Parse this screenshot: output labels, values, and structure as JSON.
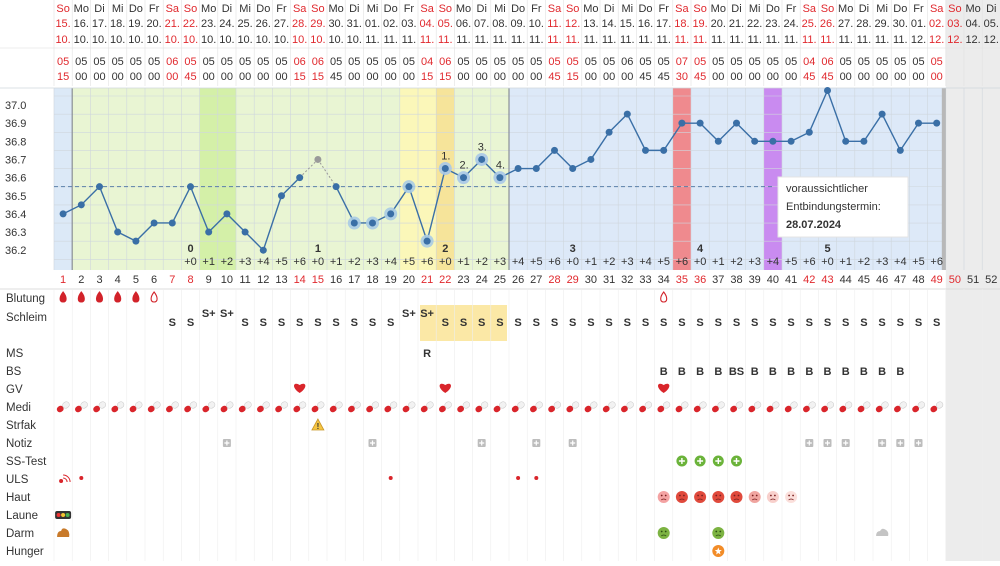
{
  "chart_data": {
    "type": "line",
    "title": "",
    "xlabel": "",
    "ylabel": "",
    "ylim": [
      36.1,
      37.1
    ],
    "y_ticks": [
      "37.0",
      "36.9",
      "36.8",
      "36.7",
      "36.6",
      "36.5",
      "36.4",
      "36.3",
      "36.2"
    ],
    "coverline": 36.55,
    "days": [
      {
        "dow": "So",
        "date": "15.",
        "month": "10.",
        "t1": "05",
        "t2": "15"
      },
      {
        "dow": "Mo",
        "date": "16.",
        "month": "10.",
        "t1": "05",
        "t2": "00"
      },
      {
        "dow": "Di",
        "date": "17.",
        "month": "10.",
        "t1": "05",
        "t2": "00"
      },
      {
        "dow": "Mi",
        "date": "18.",
        "month": "10.",
        "t1": "05",
        "t2": "00"
      },
      {
        "dow": "Do",
        "date": "19.",
        "month": "10.",
        "t1": "05",
        "t2": "00"
      },
      {
        "dow": "Fr",
        "date": "20.",
        "month": "10.",
        "t1": "05",
        "t2": "00"
      },
      {
        "dow": "Sa",
        "date": "21.",
        "month": "10.",
        "t1": "06",
        "t2": "00"
      },
      {
        "dow": "So",
        "date": "22.",
        "month": "10.",
        "t1": "05",
        "t2": "45"
      },
      {
        "dow": "Mo",
        "date": "23.",
        "month": "10.",
        "t1": "05",
        "t2": "00"
      },
      {
        "dow": "Di",
        "date": "24.",
        "month": "10.",
        "t1": "05",
        "t2": "00"
      },
      {
        "dow": "Mi",
        "date": "25.",
        "month": "10.",
        "t1": "05",
        "t2": "00"
      },
      {
        "dow": "Do",
        "date": "26.",
        "month": "10.",
        "t1": "05",
        "t2": "00"
      },
      {
        "dow": "Fr",
        "date": "27.",
        "month": "10.",
        "t1": "05",
        "t2": "00"
      },
      {
        "dow": "Sa",
        "date": "28.",
        "month": "10.",
        "t1": "06",
        "t2": "15"
      },
      {
        "dow": "So",
        "date": "29.",
        "month": "10.",
        "t1": "06",
        "t2": "15"
      },
      {
        "dow": "Mo",
        "date": "30.",
        "month": "10.",
        "t1": "05",
        "t2": "45"
      },
      {
        "dow": "Di",
        "date": "31.",
        "month": "10.",
        "t1": "05",
        "t2": "00"
      },
      {
        "dow": "Mi",
        "date": "01.",
        "month": "11.",
        "t1": "05",
        "t2": "00"
      },
      {
        "dow": "Do",
        "date": "02.",
        "month": "11.",
        "t1": "05",
        "t2": "00"
      },
      {
        "dow": "Fr",
        "date": "03.",
        "month": "11.",
        "t1": "05",
        "t2": "00"
      },
      {
        "dow": "Sa",
        "date": "04.",
        "month": "11.",
        "t1": "04",
        "t2": "15"
      },
      {
        "dow": "So",
        "date": "05.",
        "month": "11.",
        "t1": "06",
        "t2": "15"
      },
      {
        "dow": "Mo",
        "date": "06.",
        "month": "11.",
        "t1": "05",
        "t2": "00"
      },
      {
        "dow": "Di",
        "date": "07.",
        "month": "11.",
        "t1": "05",
        "t2": "00"
      },
      {
        "dow": "Mi",
        "date": "08.",
        "month": "11.",
        "t1": "05",
        "t2": "00"
      },
      {
        "dow": "Do",
        "date": "09.",
        "month": "11.",
        "t1": "05",
        "t2": "00"
      },
      {
        "dow": "Fr",
        "date": "10.",
        "month": "11.",
        "t1": "05",
        "t2": "00"
      },
      {
        "dow": "Sa",
        "date": "11.",
        "month": "11.",
        "t1": "05",
        "t2": "45"
      },
      {
        "dow": "So",
        "date": "12.",
        "month": "11.",
        "t1": "05",
        "t2": "15"
      },
      {
        "dow": "Mo",
        "date": "13.",
        "month": "11.",
        "t1": "05",
        "t2": "00"
      },
      {
        "dow": "Di",
        "date": "14.",
        "month": "11.",
        "t1": "05",
        "t2": "00"
      },
      {
        "dow": "Mi",
        "date": "15.",
        "month": "11.",
        "t1": "06",
        "t2": "00"
      },
      {
        "dow": "Do",
        "date": "16.",
        "month": "11.",
        "t1": "05",
        "t2": "45"
      },
      {
        "dow": "Fr",
        "date": "17.",
        "month": "11.",
        "t1": "05",
        "t2": "45"
      },
      {
        "dow": "Sa",
        "date": "18.",
        "month": "11.",
        "t1": "07",
        "t2": "30"
      },
      {
        "dow": "So",
        "date": "19.",
        "month": "11.",
        "t1": "05",
        "t2": "45"
      },
      {
        "dow": "Mo",
        "date": "20.",
        "month": "11.",
        "t1": "05",
        "t2": "00"
      },
      {
        "dow": "Di",
        "date": "21.",
        "month": "11.",
        "t1": "05",
        "t2": "00"
      },
      {
        "dow": "Mi",
        "date": "22.",
        "month": "11.",
        "t1": "05",
        "t2": "00"
      },
      {
        "dow": "Do",
        "date": "23.",
        "month": "11.",
        "t1": "05",
        "t2": "00"
      },
      {
        "dow": "Fr",
        "date": "24.",
        "month": "11.",
        "t1": "05",
        "t2": "00"
      },
      {
        "dow": "Sa",
        "date": "25.",
        "month": "11.",
        "t1": "04",
        "t2": "45"
      },
      {
        "dow": "So",
        "date": "26.",
        "month": "11.",
        "t1": "06",
        "t2": "45"
      },
      {
        "dow": "Mo",
        "date": "27.",
        "month": "11.",
        "t1": "05",
        "t2": "00"
      },
      {
        "dow": "Di",
        "date": "28.",
        "month": "11.",
        "t1": "05",
        "t2": "00"
      },
      {
        "dow": "Mi",
        "date": "29.",
        "month": "11.",
        "t1": "05",
        "t2": "00"
      },
      {
        "dow": "Do",
        "date": "30.",
        "month": "11.",
        "t1": "05",
        "t2": "00"
      },
      {
        "dow": "Fr",
        "date": "01.",
        "month": "12.",
        "t1": "05",
        "t2": "00"
      },
      {
        "dow": "Sa",
        "date": "02.",
        "month": "12.",
        "t1": "05",
        "t2": "00"
      },
      {
        "dow": "So",
        "date": "03.",
        "month": "12.",
        "t1": "",
        "t2": ""
      },
      {
        "dow": "Mo",
        "date": "04.",
        "month": "12.",
        "t1": "",
        "t2": ""
      },
      {
        "dow": "Di",
        "date": "05.",
        "month": "12.",
        "t1": "",
        "t2": ""
      }
    ],
    "temperatures": [
      36.4,
      36.45,
      36.55,
      36.3,
      36.25,
      36.35,
      36.35,
      36.55,
      36.3,
      36.4,
      36.3,
      36.2,
      36.5,
      36.6,
      36.7,
      36.55,
      36.35,
      36.35,
      36.4,
      36.55,
      36.25,
      36.65,
      36.6,
      36.7,
      36.6,
      36.65,
      36.65,
      36.75,
      36.65,
      36.7,
      36.85,
      36.95,
      36.75,
      36.75,
      36.9,
      36.9,
      36.8,
      36.9,
      36.8,
      36.8,
      36.8,
      36.85,
      37.08,
      36.8,
      36.8,
      36.95,
      36.75,
      36.9,
      36.9
    ],
    "excluded_day": 15,
    "highlighted_days": [
      17,
      18,
      19,
      20,
      21
    ],
    "ovulation_marker_days": [
      22,
      23,
      24,
      25
    ],
    "ovulation_marker_labels": [
      "1.",
      "2.",
      "3.",
      "4."
    ],
    "week_numbers": [
      {
        "day": 8,
        "label": "0"
      },
      {
        "day": 15,
        "label": "1"
      },
      {
        "day": 22,
        "label": "2"
      },
      {
        "day": 29,
        "label": "3"
      },
      {
        "day": 36,
        "label": "4"
      },
      {
        "day": 43,
        "label": "5"
      }
    ],
    "week_offsets": [
      "+0",
      "+1",
      "+2",
      "+3",
      "+4",
      "+5",
      "+6"
    ],
    "annotation": {
      "line1": "voraussichtlicher",
      "line2": "Entbindungstermin:",
      "date": "28.07.2024"
    },
    "row_labels": [
      "Blutung",
      "Schleim",
      "",
      "MS",
      "BS",
      "GV",
      "Medi",
      "Strfak",
      "Notiz",
      "SS-Test",
      "ULS",
      "Haut",
      "Laune",
      "Darm",
      "Hunger"
    ],
    "schleim": {
      "7": "S",
      "8": "S",
      "9": "S+",
      "10": "S+",
      "11": "S",
      "12": "S",
      "13": "S",
      "14": "S",
      "15": "S",
      "16": "S",
      "17": "S",
      "18": "S",
      "19": "S",
      "20": "S+",
      "21": "S+",
      "22": "S",
      "23": "S",
      "24": "S",
      "25": "S",
      "26": "S",
      "27": "S",
      "28": "S",
      "29": "S",
      "30": "S",
      "31": "S",
      "32": "S",
      "33": "S",
      "34": "S",
      "35": "S",
      "36": "S",
      "37": "S",
      "38": "S",
      "39": "S",
      "40": "S",
      "41": "S",
      "42": "S",
      "43": "S",
      "44": "S",
      "45": "S",
      "46": "S",
      "47": "S",
      "48": "S",
      "49": "S"
    },
    "ms": {
      "21": "R"
    },
    "bs": {
      "34": "B",
      "35": "B",
      "36": "B",
      "37": "B",
      "38": "BS",
      "39": "B",
      "40": "B",
      "41": "B",
      "42": "B",
      "43": "B",
      "44": "B",
      "45": "B",
      "46": "B",
      "47": "B"
    },
    "colors": {
      "weekend": "#e0292e",
      "line": "#3a6fa6",
      "infertile": "#e9f5d3",
      "fertile": "#d4f0a8",
      "pregnant": "#dde9f8",
      "peak": "#f6e49a",
      "red_col": "#ef8a8e",
      "purple_col": "#c98bf0"
    }
  }
}
